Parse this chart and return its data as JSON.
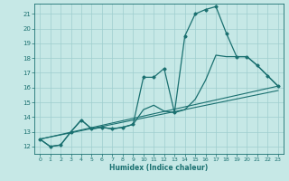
{
  "xlabel": "Humidex (Indice chaleur)",
  "xlim": [
    -0.5,
    23.5
  ],
  "ylim": [
    11.5,
    21.7
  ],
  "xticks": [
    0,
    1,
    2,
    3,
    4,
    5,
    6,
    7,
    8,
    9,
    10,
    11,
    12,
    13,
    14,
    15,
    16,
    17,
    18,
    19,
    20,
    21,
    22,
    23
  ],
  "yticks": [
    12,
    13,
    14,
    15,
    16,
    17,
    18,
    19,
    20,
    21
  ],
  "background_color": "#c6e8e6",
  "grid_color": "#9ecece",
  "line_color": "#1a7070",
  "line1_x": [
    0,
    1,
    2,
    3,
    4,
    5,
    6,
    7,
    8,
    9,
    10,
    11,
    12,
    13,
    14,
    15,
    16,
    17,
    18,
    19,
    20,
    21,
    22,
    23
  ],
  "line1_y": [
    12.5,
    12.0,
    12.1,
    13.0,
    13.8,
    13.2,
    13.3,
    13.2,
    13.3,
    13.5,
    16.7,
    16.7,
    17.3,
    14.3,
    19.5,
    21.0,
    21.3,
    21.5,
    19.7,
    18.1,
    18.1,
    17.5,
    16.8,
    16.1
  ],
  "line2_x": [
    0,
    1,
    2,
    3,
    4,
    5,
    6,
    7,
    8,
    9,
    10,
    11,
    12,
    13,
    14,
    15,
    16,
    17,
    18,
    19,
    20,
    21,
    22,
    23
  ],
  "line2_y": [
    12.5,
    12.0,
    12.1,
    13.0,
    13.8,
    13.2,
    13.3,
    13.2,
    13.3,
    13.5,
    14.5,
    14.8,
    14.4,
    14.3,
    14.5,
    15.2,
    16.5,
    18.2,
    18.1,
    18.1,
    18.1,
    17.5,
    16.8,
    16.1
  ],
  "line3_x": [
    0,
    23
  ],
  "line3_y": [
    12.5,
    16.1
  ],
  "line4_x": [
    0,
    23
  ],
  "line4_y": [
    12.5,
    15.8
  ]
}
